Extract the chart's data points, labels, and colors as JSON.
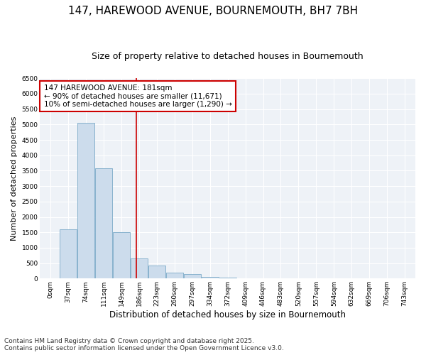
{
  "title1": "147, HAREWOOD AVENUE, BOURNEMOUTH, BH7 7BH",
  "title2": "Size of property relative to detached houses in Bournemouth",
  "xlabel": "Distribution of detached houses by size in Bournemouth",
  "ylabel": "Number of detached properties",
  "categories": [
    "0sqm",
    "37sqm",
    "74sqm",
    "111sqm",
    "149sqm",
    "186sqm",
    "223sqm",
    "260sqm",
    "297sqm",
    "334sqm",
    "372sqm",
    "409sqm",
    "446sqm",
    "483sqm",
    "520sqm",
    "557sqm",
    "594sqm",
    "632sqm",
    "669sqm",
    "706sqm",
    "743sqm"
  ],
  "values": [
    0,
    1600,
    5050,
    3580,
    1500,
    650,
    430,
    200,
    145,
    50,
    25,
    10,
    0,
    0,
    0,
    0,
    0,
    0,
    0,
    0,
    0
  ],
  "bar_color": "#ccdcec",
  "bar_edge_color": "#7aaac8",
  "vline_color": "#cc0000",
  "vline_x_index": 4.86,
  "annotation_text": "147 HAREWOOD AVENUE: 181sqm\n← 90% of detached houses are smaller (11,671)\n10% of semi-detached houses are larger (1,290) →",
  "annotation_box_color": "#ffffff",
  "annotation_box_edge": "#cc0000",
  "ylim": [
    0,
    6500
  ],
  "yticks": [
    0,
    500,
    1000,
    1500,
    2000,
    2500,
    3000,
    3500,
    4000,
    4500,
    5000,
    5500,
    6000,
    6500
  ],
  "plot_bg_color": "#eef2f7",
  "footer1": "Contains HM Land Registry data © Crown copyright and database right 2025.",
  "footer2": "Contains public sector information licensed under the Open Government Licence v3.0.",
  "title1_fontsize": 11,
  "title2_fontsize": 9,
  "tick_fontsize": 6.5,
  "ylabel_fontsize": 8,
  "xlabel_fontsize": 8.5,
  "annotation_fontsize": 7.5,
  "footer_fontsize": 6.5
}
